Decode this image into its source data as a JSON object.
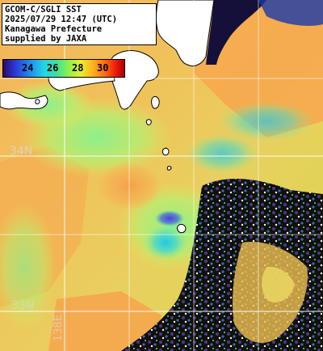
{
  "info": {
    "line1": "GCOM-C/SGLI SST",
    "line2": "2025/07/29 12:47 (UTC)",
    "line3": "Kanagawa Prefecture",
    "line4": "supplied by JAXA"
  },
  "color_scale": {
    "labels": [
      "24",
      "26",
      "28",
      "30"
    ],
    "unit_hint": "",
    "colors": [
      "#2a0a6a",
      "#2a3ad8",
      "#1f8cf0",
      "#22d6e6",
      "#3ee0a0",
      "#8ef04a",
      "#e8ee30",
      "#ffb020",
      "#ff6a10",
      "#ee1a0a",
      "#a8000a"
    ]
  },
  "grid_labels": {
    "lat_top": "34N",
    "lat_bottom": "33N",
    "lon_bottom": "138E"
  },
  "colors": {
    "land": "#ffffff",
    "grid": "#ffffff",
    "no_data": "#000000"
  }
}
